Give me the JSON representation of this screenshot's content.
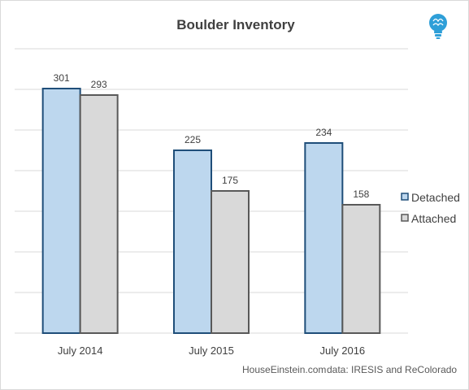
{
  "brand": {
    "logo_icon": "lightbulb-brain-icon",
    "logo_color": "#2e9fd8"
  },
  "chart_data": {
    "type": "bar",
    "title": "Boulder Inventory",
    "xlabel": "",
    "ylabel": "",
    "categories": [
      "July 2014",
      "July 2015",
      "July 2016"
    ],
    "series": [
      {
        "name": "Detached",
        "values": [
          301,
          225,
          234
        ],
        "fill": "#bdd7ee",
        "stroke": "#1f4e79"
      },
      {
        "name": "Attached",
        "values": [
          293,
          175,
          158
        ],
        "fill": "#d9d9d9",
        "stroke": "#595959"
      }
    ],
    "ylim": [
      0,
      350
    ],
    "grid": true,
    "y_tick_labels_shown": false,
    "legend_position": "right",
    "footer": {
      "site": "HouseEinstein.com",
      "source": "data: IRESIS and ReColorado"
    }
  }
}
